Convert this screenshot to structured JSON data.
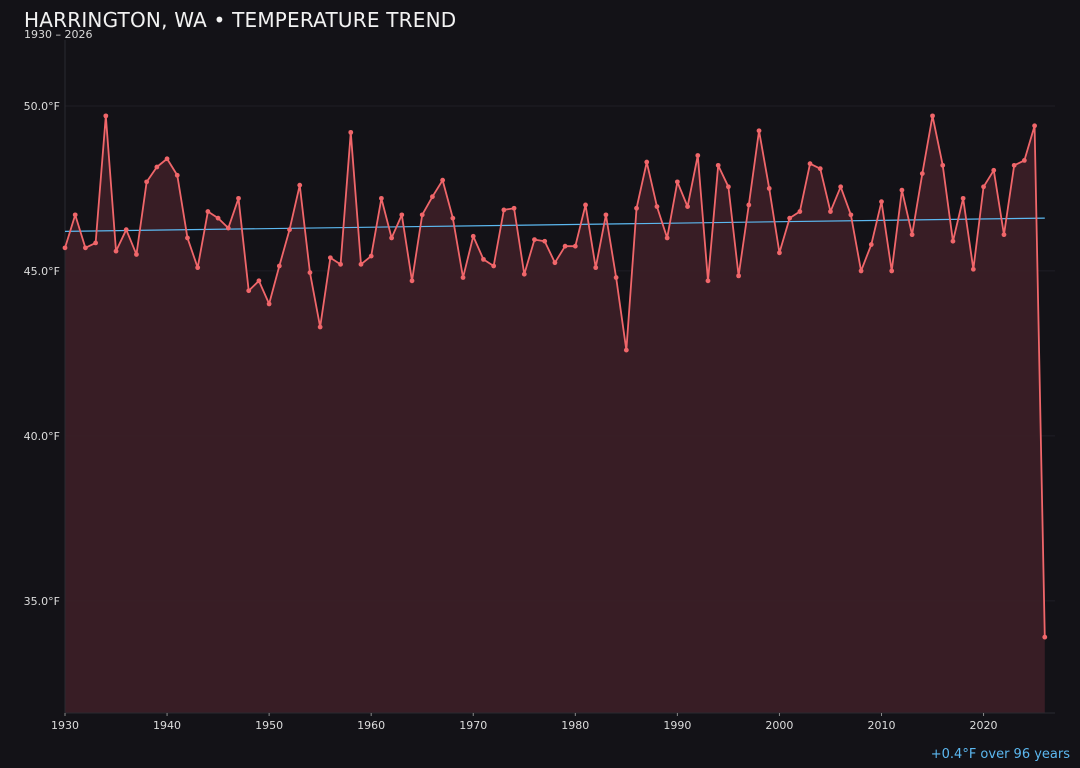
{
  "header": {
    "title": "HARRINGTON, WA • TEMPERATURE TREND",
    "subtitle": "1930 – 2026"
  },
  "footer": {
    "trend_summary": "+0.4°F over 96 years"
  },
  "colors": {
    "background": "#131217",
    "series_line": "#f0666a",
    "series_fill": "#3a1f26",
    "trend_line": "#5cb8f0",
    "axis_text": "#dcdcdc"
  },
  "chart_data": {
    "type": "area",
    "title": "HARRINGTON, WA • TEMPERATURE TREND",
    "subtitle": "1930 – 2026",
    "xlabel": "",
    "ylabel": "",
    "xlim": [
      1930,
      2027
    ],
    "ylim": [
      31.6,
      52.0
    ],
    "x_ticks": [
      1930,
      1940,
      1950,
      1960,
      1970,
      1980,
      1990,
      2000,
      2010,
      2020
    ],
    "y_ticks": [
      35.0,
      40.0,
      45.0,
      50.0
    ],
    "y_tick_labels": [
      "35.0°F",
      "40.0°F",
      "45.0°F",
      "50.0°F"
    ],
    "grid": "horizontal",
    "legend": "none",
    "series": [
      {
        "x": [
          1930,
          1931,
          1932,
          1933,
          1934,
          1935,
          1936,
          1937,
          1938,
          1939,
          1940,
          1941,
          1942,
          1943,
          1944,
          1945,
          1946,
          1947,
          1948,
          1949,
          1950,
          1951,
          1952,
          1953,
          1954,
          1955,
          1956,
          1957,
          1958,
          1959,
          1960,
          1961,
          1962,
          1963,
          1964,
          1965,
          1966,
          1967,
          1968,
          1969,
          1970,
          1971,
          1972,
          1973,
          1974,
          1975,
          1976,
          1977,
          1978,
          1979,
          1980,
          1981,
          1982,
          1983,
          1984,
          1985,
          1986,
          1987,
          1988,
          1989,
          1990,
          1991,
          1992,
          1993,
          1994,
          1995,
          1996,
          1997,
          1998,
          1999,
          2000,
          2001,
          2002,
          2003,
          2004,
          2005,
          2006,
          2007,
          2008,
          2009,
          2010,
          2011,
          2012,
          2013,
          2014,
          2015,
          2016,
          2017,
          2018,
          2019,
          2020,
          2021,
          2022,
          2023,
          2024,
          2025,
          2026
        ],
        "values": [
          45.7,
          46.7,
          45.7,
          45.85,
          49.7,
          45.6,
          46.25,
          45.5,
          47.7,
          48.15,
          48.4,
          47.9,
          46.0,
          45.1,
          46.8,
          46.6,
          46.3,
          47.2,
          44.4,
          44.7,
          44.0,
          45.15,
          46.25,
          47.6,
          44.95,
          43.3,
          45.4,
          45.2,
          49.2,
          45.2,
          45.45,
          47.2,
          46.0,
          46.7,
          44.7,
          46.7,
          47.25,
          47.75,
          46.6,
          44.8,
          46.05,
          45.35,
          45.15,
          46.85,
          46.9,
          44.9,
          45.95,
          45.9,
          45.25,
          45.75,
          45.75,
          47.0,
          45.1,
          46.7,
          44.8,
          42.6,
          46.9,
          48.3,
          46.95,
          46.0,
          47.7,
          46.95,
          48.5,
          44.7,
          48.2,
          47.55,
          44.85,
          47.0,
          49.25,
          47.5,
          45.55,
          46.6,
          46.8,
          48.25,
          48.1,
          46.8,
          47.55,
          46.7,
          45.0,
          45.8,
          47.1,
          45.0,
          47.45,
          46.1,
          47.95,
          49.7,
          48.2,
          45.9,
          47.2,
          45.05,
          47.55,
          48.05,
          46.1,
          48.2,
          48.35,
          49.4,
          33.9
        ]
      },
      {
        "x": [
          1930,
          2026
        ],
        "values": [
          46.2,
          46.6
        ]
      }
    ]
  }
}
